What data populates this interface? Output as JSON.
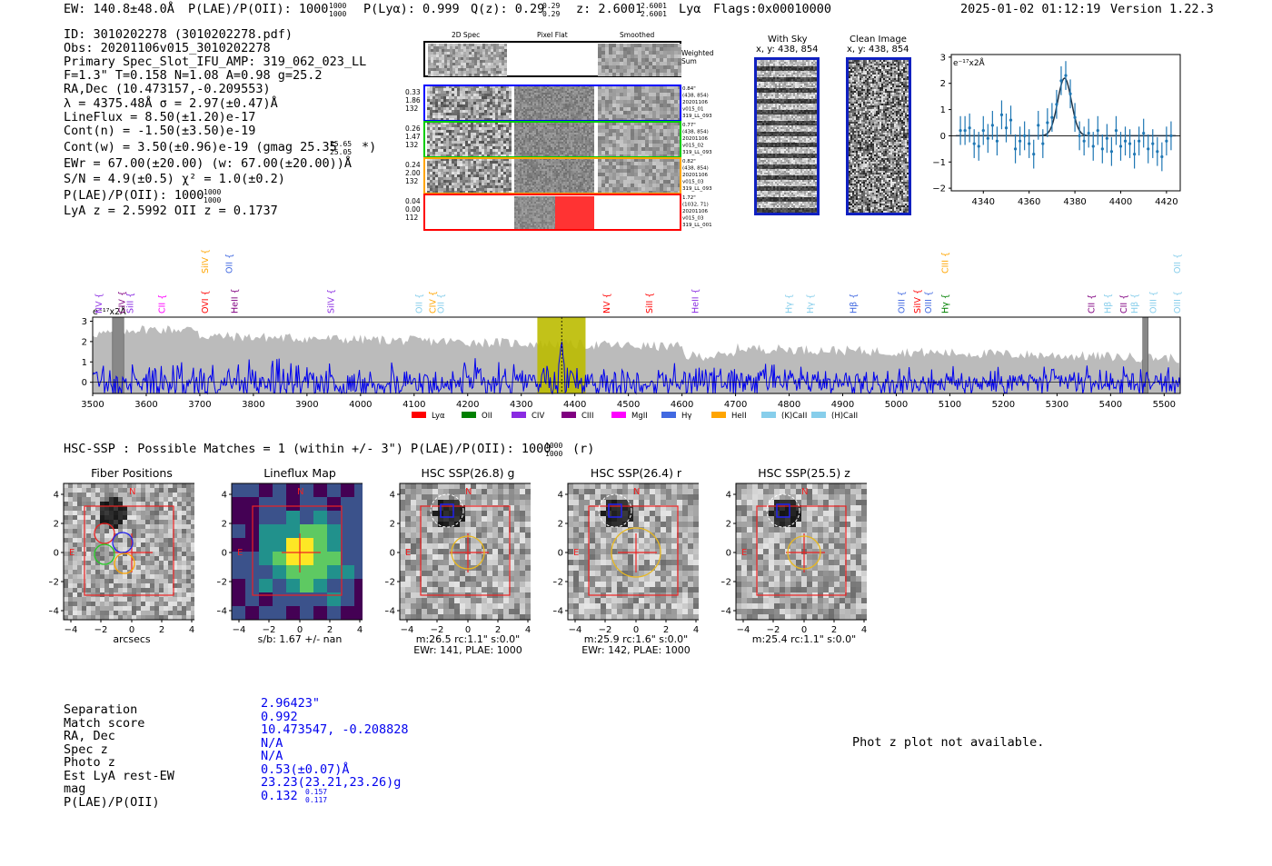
{
  "header": {
    "ew": "EW: 140.8±48.0Å",
    "plae": "P(LAE)/P(OII): 1000",
    "plae_hi": "1000",
    "plae_lo": "1000",
    "plya": "P(Lyα): 0.999",
    "qz": "Q(z): 0.29",
    "qz_hi": "0.29",
    "qz_lo": "0.29",
    "z": "z: 2.6001",
    "z_hi": "2.6001",
    "z_lo": "2.6001",
    "z_line": "Lyα",
    "flags": "Flags:0x00010000",
    "datetime": "2025-01-02 01:12:19",
    "version": "Version 1.22.3"
  },
  "info": {
    "id": "ID: 3010202278 (3010202278.pdf)",
    "obs": "Obs: 20201106v015_3010202278",
    "primary": "Primary Spec_Slot_IFU_AMP: 319_062_023_LL",
    "params": "F=1.3\"  T=0.158  N=1.08  A=0.98  g=25.2",
    "radec": "RA,Dec (10.473157,-0.209553)",
    "lambda": "λ = 4375.48Å  σ = 2.97(±0.47)Å",
    "lineflux": "LineFlux = 8.50(±1.20)e-17",
    "contn": "Cont(n) = -1.50(±3.50)e-19",
    "contw": "Cont(w) = 3.50(±0.96)e-19 (gmag 25.35",
    "contw_hi": "25.65",
    "contw_lo": "25.05",
    "contw_end": "*)",
    "ewr": "EWr = 67.00(±20.00) (w: 67.00(±20.00))Å",
    "sn": "S/N = 4.9(±0.5)  χ² = 1.0(±0.2)",
    "plae": "P(LAE)/P(OII): 1000",
    "plae_hi": "1000",
    "plae_lo": "1000",
    "lyaz": "LyA z = 2.5992  OII z = 0.1737"
  },
  "cutouts": {
    "col_titles": [
      "2D Spec",
      "Pixel Flat",
      "Smoothed"
    ],
    "weighted_sum": "Weighted Sum",
    "rows": [
      {
        "left": [
          "0.33",
          "1.86",
          "132"
        ],
        "right": [
          "0.84\"",
          "(438, 854)",
          "20201106",
          "v015_01",
          "319_LL_093"
        ],
        "color": "#0000ff"
      },
      {
        "left": [
          "0.26",
          "1.47",
          "132"
        ],
        "right": [
          "0.77\"",
          "(438, 854)",
          "20201106",
          "v015_02",
          "319_LL_093"
        ],
        "color": "#00cc00"
      },
      {
        "left": [
          "0.24",
          "2.00",
          "132"
        ],
        "right": [
          "0.82\"",
          "(438, 854)",
          "20201106",
          "v015_03",
          "319_LL_093"
        ],
        "color": "#ffa500"
      },
      {
        "left": [
          "0.04",
          "0.00",
          "112"
        ],
        "right": [
          "1.72\"",
          "(1032, 71)",
          "20201106",
          "v015_03",
          "319_LL_001"
        ],
        "color": "#ff0000"
      }
    ],
    "with_sky_title": "With Sky",
    "with_sky_xy": "x, y: 438, 854",
    "clean_title": "Clean Image",
    "clean_xy": "x, y: 438, 854"
  },
  "zoom_chart": {
    "chart_data": {
      "type": "line",
      "ylabel": "e⁻¹⁷x2Å",
      "xlim": [
        4326,
        4426
      ],
      "ylim": [
        -2.1,
        3.1
      ],
      "xticks": [
        4340,
        4360,
        4380,
        4400,
        4420
      ],
      "yticks": [
        -2,
        -1,
        0,
        1,
        2,
        3
      ],
      "points": [
        [
          4330,
          0.2,
          0.55
        ],
        [
          4332,
          0.2,
          0.55
        ],
        [
          4334,
          0.3,
          0.55
        ],
        [
          4336,
          -0.3,
          0.55
        ],
        [
          4338,
          -0.4,
          0.55
        ],
        [
          4340,
          0.2,
          0.55
        ],
        [
          4342,
          -0.1,
          0.55
        ],
        [
          4344,
          0.4,
          0.55
        ],
        [
          4346,
          -0.2,
          0.55
        ],
        [
          4348,
          0.8,
          0.55
        ],
        [
          4350,
          0.3,
          0.55
        ],
        [
          4352,
          0.6,
          0.55
        ],
        [
          4354,
          -0.5,
          0.55
        ],
        [
          4356,
          -0.2,
          0.55
        ],
        [
          4358,
          0.0,
          0.55
        ],
        [
          4360,
          -0.3,
          0.55
        ],
        [
          4362,
          -0.7,
          0.55
        ],
        [
          4364,
          0.4,
          0.55
        ],
        [
          4366,
          -0.3,
          0.55
        ],
        [
          4368,
          0.5,
          0.55
        ],
        [
          4370,
          0.7,
          0.55
        ],
        [
          4372,
          1.2,
          0.55
        ],
        [
          4374,
          2.1,
          0.55
        ],
        [
          4376,
          2.3,
          0.55
        ],
        [
          4378,
          1.6,
          0.55
        ],
        [
          4380,
          0.7,
          0.55
        ],
        [
          4382,
          0.0,
          0.55
        ],
        [
          4384,
          -0.2,
          0.55
        ],
        [
          4386,
          0.1,
          0.55
        ],
        [
          4388,
          -0.4,
          0.55
        ],
        [
          4390,
          0.2,
          0.55
        ],
        [
          4392,
          -0.5,
          0.55
        ],
        [
          4394,
          -0.1,
          0.55
        ],
        [
          4396,
          -0.6,
          0.55
        ],
        [
          4398,
          0.2,
          0.55
        ],
        [
          4400,
          -0.4,
          0.55
        ],
        [
          4402,
          -0.2,
          0.55
        ],
        [
          4404,
          -0.3,
          0.55
        ],
        [
          4406,
          -0.7,
          0.55
        ],
        [
          4408,
          -0.2,
          0.55
        ],
        [
          4410,
          0.1,
          0.55
        ],
        [
          4412,
          -0.5,
          0.55
        ],
        [
          4414,
          -0.3,
          0.55
        ],
        [
          4416,
          -0.6,
          0.55
        ],
        [
          4418,
          -0.8,
          0.55
        ],
        [
          4420,
          -0.2,
          0.55
        ],
        [
          4422,
          0.0,
          0.55
        ]
      ],
      "fit": {
        "amplitude": 2.2,
        "center": 4375.48,
        "sigma": 2.97
      }
    }
  },
  "full_chart": {
    "chart_data": {
      "type": "line",
      "ylabel": "e⁻¹⁷x2Å",
      "xlim": [
        3500,
        5530
      ],
      "ylim": [
        -0.55,
        3.2
      ],
      "xticks": [
        3500,
        3600,
        3700,
        3800,
        3900,
        4000,
        4100,
        4200,
        4300,
        4400,
        4500,
        4600,
        4700,
        4800,
        4900,
        5000,
        5100,
        5200,
        5300,
        5400,
        5500
      ],
      "yticks": [
        0,
        1,
        2,
        3
      ],
      "highlight_band": [
        4330,
        4420
      ],
      "line_marker": 4375.48,
      "masked_regions": [
        [
          3537,
          3558
        ],
        [
          5460,
          5470
        ]
      ],
      "legend": [
        {
          "label": "Lyα",
          "color": "#ff0000"
        },
        {
          "label": "OII",
          "color": "#008000"
        },
        {
          "label": "CIV",
          "color": "#8a2be2"
        },
        {
          "label": "CIII",
          "color": "#800080"
        },
        {
          "label": "MgII",
          "color": "#ff00ff"
        },
        {
          "label": "Hγ",
          "color": "#4169e1"
        },
        {
          "label": "HeII",
          "color": "#ffa500"
        },
        {
          "label": "(K)CaII",
          "color": "#87ceeb"
        },
        {
          "label": "(H)CaII",
          "color": "#87ceeb"
        }
      ],
      "lines": [
        {
          "label": "NV",
          "wave": 3512,
          "color": "#8a2be2",
          "level": 0
        },
        {
          "label": "CIV",
          "wave": 3555,
          "color": "#800080",
          "level": 0
        },
        {
          "label": "SiII",
          "wave": 3570,
          "color": "#8a2be2",
          "level": 0
        },
        {
          "label": "CII",
          "wave": 3630,
          "color": "#ff00ff",
          "level": 0
        },
        {
          "label": "SiIV",
          "wave": 3710,
          "color": "#ffa500",
          "level": 1
        },
        {
          "label": "OVI",
          "wave": 3710,
          "color": "#ff0000",
          "level": 0
        },
        {
          "label": "OII",
          "wave": 3755,
          "color": "#4169e1",
          "level": 1
        },
        {
          "label": "HeII",
          "wave": 3765,
          "color": "#800080",
          "level": 0
        },
        {
          "label": "SiIV",
          "wave": 3945,
          "color": "#8a2be2",
          "level": 0
        },
        {
          "label": "OII",
          "wave": 4110,
          "color": "#87ceeb",
          "level": 0
        },
        {
          "label": "CIV",
          "wave": 4135,
          "color": "#ffa500",
          "level": 0
        },
        {
          "label": "OII",
          "wave": 4150,
          "color": "#87ceeb",
          "level": 0
        },
        {
          "label": "NV",
          "wave": 4460,
          "color": "#ff0000",
          "level": 0
        },
        {
          "label": "SiII",
          "wave": 4540,
          "color": "#ff0000",
          "level": 0
        },
        {
          "label": "HeII",
          "wave": 4625,
          "color": "#8a2be2",
          "level": 0
        },
        {
          "label": "Hγ",
          "wave": 4800,
          "color": "#87ceeb",
          "level": 0
        },
        {
          "label": "Hγ",
          "wave": 4840,
          "color": "#87ceeb",
          "level": 0
        },
        {
          "label": "Hβ",
          "wave": 4920,
          "color": "#4169e1",
          "level": 0
        },
        {
          "label": "OIII",
          "wave": 5010,
          "color": "#4169e1",
          "level": 0
        },
        {
          "label": "SiIV",
          "wave": 5040,
          "color": "#ff0000",
          "level": 0
        },
        {
          "label": "OIII",
          "wave": 5060,
          "color": "#4169e1",
          "level": 0
        },
        {
          "label": "CIII",
          "wave": 5092,
          "color": "#ffa500",
          "level": 1
        },
        {
          "label": "Hγ",
          "wave": 5092,
          "color": "#008000",
          "level": 0
        },
        {
          "label": "CII",
          "wave": 5365,
          "color": "#800080",
          "level": 0
        },
        {
          "label": "Hβ",
          "wave": 5395,
          "color": "#87ceeb",
          "level": 0
        },
        {
          "label": "CII",
          "wave": 5425,
          "color": "#800080",
          "level": 0
        },
        {
          "label": "Hβ",
          "wave": 5445,
          "color": "#87ceeb",
          "level": 0
        },
        {
          "label": "OIII",
          "wave": 5480,
          "color": "#87ceeb",
          "level": 0
        },
        {
          "label": "OII",
          "wave": 5525,
          "color": "#87ceeb",
          "level": 1
        },
        {
          "label": "OIII",
          "wave": 5525,
          "color": "#87ceeb",
          "level": 0
        }
      ]
    }
  },
  "hsc": {
    "summary": "HSC-SSP : Possible Matches = 1 (within +/- 3\")  P(LAE)/P(OII): 1000",
    "summary_hi": "1000",
    "summary_lo": "1000",
    "summary_end": "(r)",
    "panels": [
      {
        "title": "Fiber Positions",
        "cap1": "arcsecs",
        "cap2": ""
      },
      {
        "title": "Lineflux Map",
        "cap1": "s/b: 1.67 +/- nan",
        "cap2": ""
      },
      {
        "title": "HSC SSP(26.8) g",
        "cap1": "m:26.5 rc:1.1\"  s:0.0\"",
        "cap2": "EWr: 141, PLAE: 1000"
      },
      {
        "title": "HSC SSP(26.4) r",
        "cap1": "m:25.9 rc:1.6\"  s:0.0\"",
        "cap2": "EWr: 142, PLAE: 1000"
      },
      {
        "title": "HSC SSP(25.5) z",
        "cap1": "m:25.4 rc:1.1\"  s:0.0\"",
        "cap2": ""
      }
    ],
    "ticks": [
      "4",
      "2",
      "0",
      "−2",
      "−4"
    ],
    "xticks": [
      "−4",
      "−2",
      "0",
      "2",
      "4"
    ],
    "north": "N",
    "east": "E"
  },
  "match": {
    "labels": [
      "Separation",
      "Match score",
      "RA, Dec",
      "Spec z",
      "Photo z",
      "Est LyA rest-EW",
      "mag",
      "P(LAE)/P(OII)"
    ],
    "values": [
      "2.96423\"",
      "0.992",
      "10.473547, -0.208828",
      "N/A",
      "N/A",
      "0.53(±0.07)Å",
      "23.23(23.21,23.26)g",
      "0.132"
    ],
    "plae_hi": "0.157",
    "plae_lo": "0.117"
  },
  "photz": "Phot z plot not available."
}
